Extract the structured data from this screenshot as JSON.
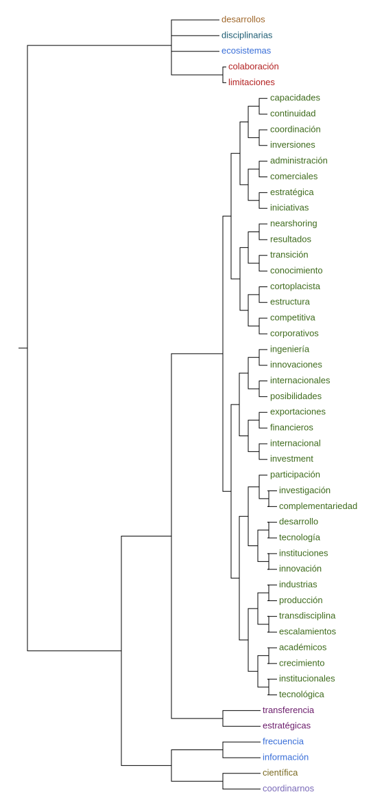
{
  "dendrogram": {
    "colors": {
      "line": "#000000",
      "g_orange": "#a0682c",
      "g_teal": "#1f5e74",
      "g_blue": "#3a6fd8",
      "g_red": "#b32222",
      "g_green": "#3f6b1d",
      "g_purple": "#6a1b6a",
      "g_olive": "#7a6a22",
      "g_lavender": "#7a6ab8"
    },
    "leaves": [
      {
        "label": "desarrollos",
        "color": "g_orange"
      },
      {
        "label": "disciplinarias",
        "color": "g_teal"
      },
      {
        "label": "ecosistemas",
        "color": "g_blue"
      },
      {
        "label": "colaboración",
        "color": "g_red"
      },
      {
        "label": "limitaciones",
        "color": "g_red"
      },
      {
        "label": "capacidades",
        "color": "g_green"
      },
      {
        "label": "continuidad",
        "color": "g_green"
      },
      {
        "label": "coordinación",
        "color": "g_green"
      },
      {
        "label": "inversiones",
        "color": "g_green"
      },
      {
        "label": "administración",
        "color": "g_green"
      },
      {
        "label": "comerciales",
        "color": "g_green"
      },
      {
        "label": "estratégica",
        "color": "g_green"
      },
      {
        "label": "iniciativas",
        "color": "g_green"
      },
      {
        "label": "nearshoring",
        "color": "g_green"
      },
      {
        "label": "resultados",
        "color": "g_green"
      },
      {
        "label": "transición",
        "color": "g_green"
      },
      {
        "label": "conocimiento",
        "color": "g_green"
      },
      {
        "label": "cortoplacista",
        "color": "g_green"
      },
      {
        "label": "estructura",
        "color": "g_green"
      },
      {
        "label": "competitiva",
        "color": "g_green"
      },
      {
        "label": "corporativos",
        "color": "g_green"
      },
      {
        "label": "ingeniería",
        "color": "g_green"
      },
      {
        "label": "innovaciones",
        "color": "g_green"
      },
      {
        "label": "internacionales",
        "color": "g_green"
      },
      {
        "label": "posibilidades",
        "color": "g_green"
      },
      {
        "label": "exportaciones",
        "color": "g_green"
      },
      {
        "label": "financieros",
        "color": "g_green"
      },
      {
        "label": "internacional",
        "color": "g_green"
      },
      {
        "label": "investment",
        "color": "g_green"
      },
      {
        "label": "participación",
        "color": "g_green"
      },
      {
        "label": "investigación",
        "color": "g_green"
      },
      {
        "label": "complementariedad",
        "color": "g_green"
      },
      {
        "label": "desarrollo",
        "color": "g_green"
      },
      {
        "label": "tecnología",
        "color": "g_green"
      },
      {
        "label": "instituciones",
        "color": "g_green"
      },
      {
        "label": "innovación",
        "color": "g_green"
      },
      {
        "label": "industrias",
        "color": "g_green"
      },
      {
        "label": "producción",
        "color": "g_green"
      },
      {
        "label": "transdisciplina",
        "color": "g_green"
      },
      {
        "label": "escalamientos",
        "color": "g_green"
      },
      {
        "label": "académicos",
        "color": "g_green"
      },
      {
        "label": "crecimiento",
        "color": "g_green"
      },
      {
        "label": "institucionales",
        "color": "g_green"
      },
      {
        "label": "tecnológica",
        "color": "g_green"
      },
      {
        "label": "transferencia",
        "color": "g_purple"
      },
      {
        "label": "estratégicas",
        "color": "g_purple"
      },
      {
        "label": "frecuencia",
        "color": "g_blue"
      },
      {
        "label": "información",
        "color": "g_blue"
      },
      {
        "label": "científica",
        "color": "g_olive"
      },
      {
        "label": "coordinarnos",
        "color": "g_lavender"
      }
    ]
  }
}
